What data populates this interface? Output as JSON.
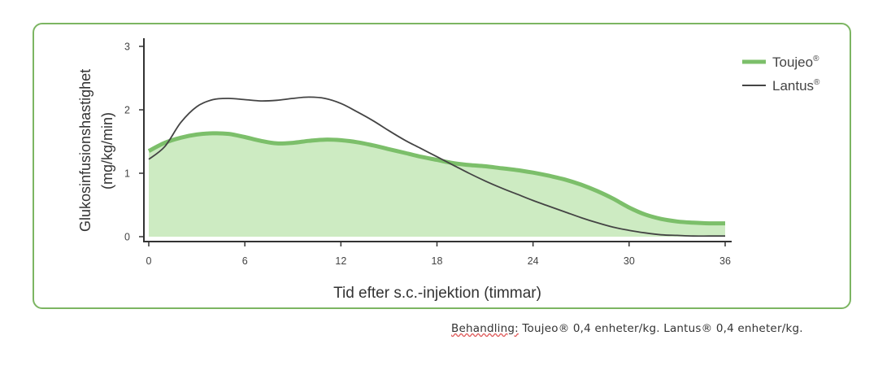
{
  "chart_data": {
    "type": "area",
    "xlabel": "Tid efter s.c.-injektion (timmar)",
    "ylabel_line1": "Glukosinfusionshastighet",
    "ylabel_line2": "(mg/kg/min)",
    "x_ticks": [
      "0",
      "6",
      "12",
      "18",
      "24",
      "30",
      "36"
    ],
    "y_ticks": [
      "0",
      "1",
      "2",
      "3"
    ],
    "xlim": [
      0,
      36
    ],
    "ylim": [
      0,
      3
    ],
    "grid": false,
    "legend_position": "top-right",
    "series": [
      {
        "name": "Toujeo®",
        "legend_text": "Toujeo",
        "color": "#7cbf6a",
        "fill": "#cdebc2",
        "style": "area",
        "x": [
          0,
          1,
          2,
          3,
          4,
          5,
          6,
          7,
          8,
          9,
          10,
          11,
          12,
          13,
          14,
          15,
          16,
          17,
          18,
          19,
          20,
          21,
          22,
          23,
          24,
          25,
          26,
          27,
          28,
          29,
          30,
          31,
          32,
          33,
          34,
          35,
          36
        ],
        "values": [
          1.35,
          1.48,
          1.56,
          1.61,
          1.63,
          1.62,
          1.57,
          1.51,
          1.47,
          1.48,
          1.51,
          1.53,
          1.52,
          1.49,
          1.44,
          1.38,
          1.32,
          1.26,
          1.21,
          1.16,
          1.13,
          1.11,
          1.08,
          1.05,
          1.01,
          0.96,
          0.9,
          0.82,
          0.72,
          0.6,
          0.46,
          0.35,
          0.28,
          0.24,
          0.22,
          0.21,
          0.21
        ]
      },
      {
        "name": "Lantus®",
        "legend_text": "Lantus",
        "color": "#444444",
        "style": "line",
        "x": [
          0,
          1,
          2,
          3,
          4,
          5,
          6,
          7,
          8,
          9,
          10,
          11,
          12,
          13,
          14,
          15,
          16,
          17,
          18,
          19,
          20,
          21,
          22,
          23,
          24,
          25,
          26,
          27,
          28,
          29,
          30,
          31,
          32,
          33,
          34,
          35,
          36
        ],
        "values": [
          1.22,
          1.42,
          1.8,
          2.05,
          2.16,
          2.18,
          2.16,
          2.14,
          2.15,
          2.18,
          2.2,
          2.18,
          2.1,
          1.97,
          1.83,
          1.67,
          1.52,
          1.39,
          1.26,
          1.13,
          1.0,
          0.88,
          0.77,
          0.67,
          0.57,
          0.48,
          0.39,
          0.3,
          0.22,
          0.15,
          0.1,
          0.06,
          0.03,
          0.02,
          0.01,
          0.01,
          0.01
        ]
      }
    ]
  },
  "colors": {
    "frame": "#7cb562",
    "axis": "#333333"
  },
  "footnote": {
    "prefix": "Behandling:",
    "text": "Toujeo® 0,4 enheter/kg. Lantus® 0,4 enheter/kg."
  }
}
